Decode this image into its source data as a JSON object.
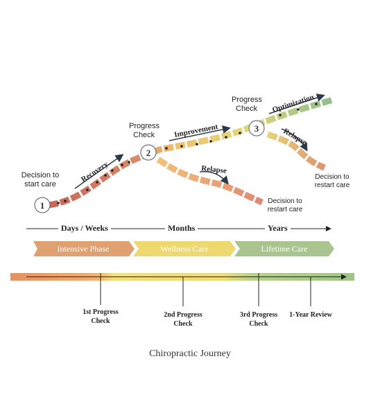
{
  "diagram": {
    "title": "Chiropractic Journey",
    "checkpoints": [
      {
        "number": "1",
        "label_line1": "Decision to",
        "label_line2": "start care"
      },
      {
        "number": "2",
        "label_line1": "Progress",
        "label_line2": "Check"
      },
      {
        "number": "3",
        "label_line1": "Progress",
        "label_line2": "Check"
      }
    ],
    "path_labels": {
      "recovery": "Recovery",
      "improvement": "Improvement",
      "optimization": "Optimization",
      "relapse_1": "Relapse",
      "relapse_2": "Relapse"
    },
    "outcomes": {
      "restart_1_line1": "Decision to",
      "restart_1_line2": "restart care",
      "restart_2_line1": "Decision to",
      "restart_2_line2": "restart care"
    },
    "time_axis": {
      "days_weeks": "Days / Weeks",
      "months": "Months",
      "years": "Years"
    },
    "phases": [
      {
        "label": "Intensive Phase",
        "color": "#e0a070"
      },
      {
        "label": "Wellness Care",
        "color": "#eed970"
      },
      {
        "label": "Lifetime Care",
        "color": "#a9c48e"
      }
    ],
    "timeline": {
      "milestones": [
        {
          "line1": "1st Progress",
          "line2": "Check"
        },
        {
          "line1": "2nd Progress",
          "line2": "Check"
        },
        {
          "line1": "3rd Progress",
          "line2": "Check"
        },
        {
          "line1": "1-Year Review",
          "line2": ""
        }
      ]
    },
    "colors": {
      "orange": "#dd8a5e",
      "yellow": "#f0d870",
      "green": "#8fbf86",
      "axis": "#222222"
    }
  }
}
